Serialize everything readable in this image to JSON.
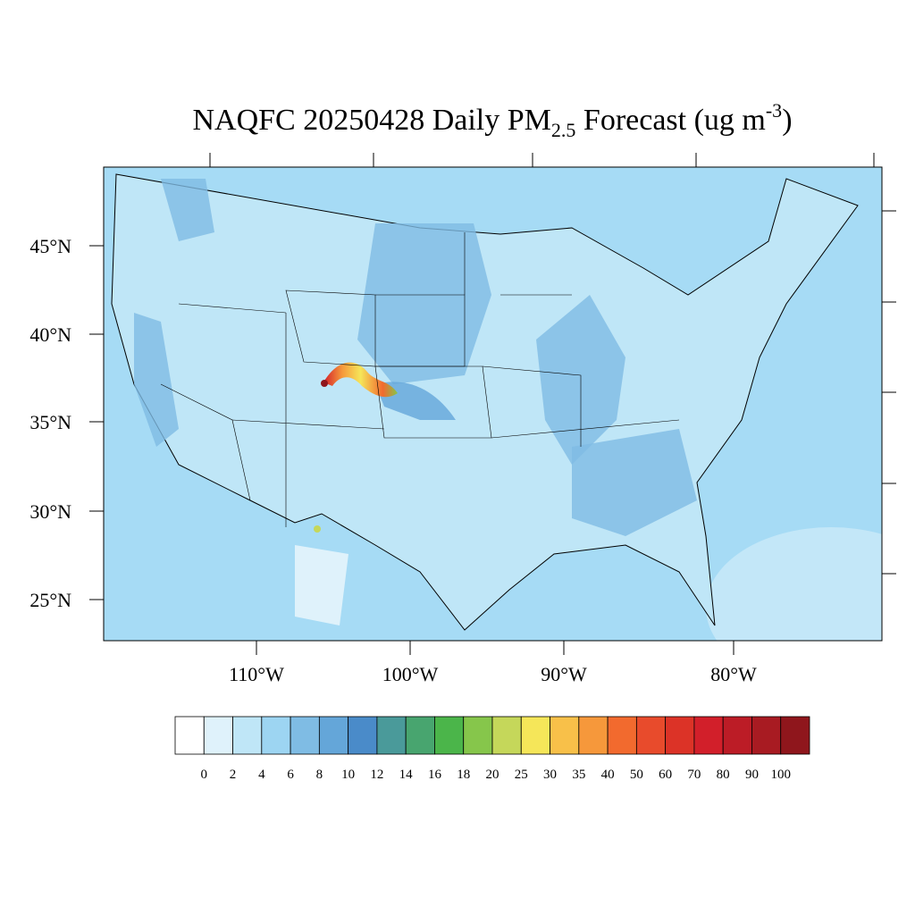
{
  "title": {
    "prefix": "NAQFC 20250428 Daily PM",
    "subscript": "2.5",
    "middle": " Forecast (ug m",
    "superscript": "-3",
    "suffix": ")"
  },
  "lat_labels": [
    "45°N",
    "40°N",
    "35°N",
    "30°N",
    "25°N"
  ],
  "lon_labels": [
    "110°W",
    "100°W",
    "90°W",
    "80°W"
  ],
  "colorbar": {
    "levels": [
      0,
      2,
      4,
      6,
      8,
      10,
      12,
      14,
      16,
      18,
      20,
      25,
      30,
      35,
      40,
      50,
      60,
      70,
      80,
      90,
      100
    ],
    "colors": [
      "#ffffff",
      "#dff2fb",
      "#bfe6f7",
      "#9dd5f2",
      "#7fbce4",
      "#64a6d9",
      "#4a8bc9",
      "#4a9a9a",
      "#48a56f",
      "#4bb54a",
      "#86c64b",
      "#c5d75a",
      "#f5e659",
      "#f8c049",
      "#f6983b",
      "#f26a2e",
      "#e84b2c",
      "#dc3327",
      "#d21f2a",
      "#bc1c26",
      "#a81b22",
      "#8f161c"
    ]
  }
}
